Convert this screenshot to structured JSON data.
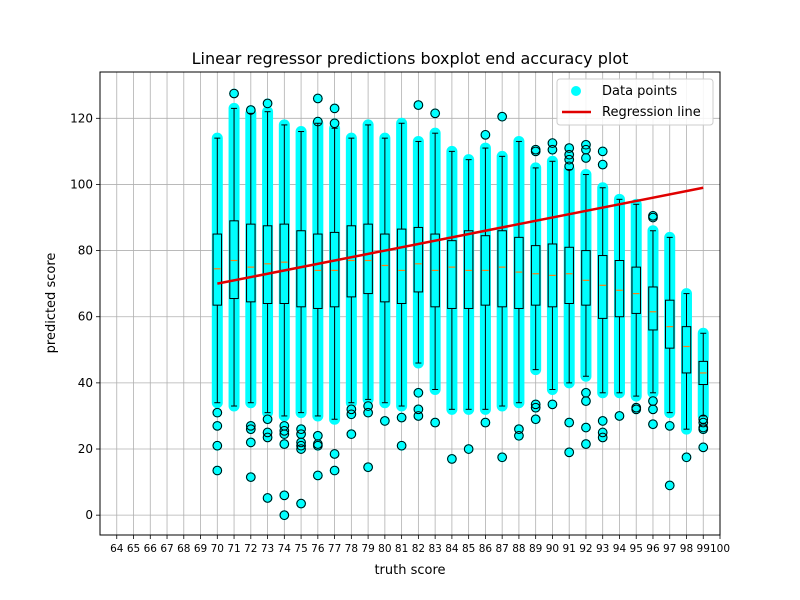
{
  "chart_data": {
    "type": "boxplot",
    "title": "Linear regressor predictions boxplot end accuracy plot",
    "xlabel": "truth score",
    "ylabel": "predicted score",
    "x_ticks": [
      64,
      65,
      66,
      67,
      68,
      69,
      70,
      71,
      72,
      73,
      74,
      75,
      76,
      77,
      78,
      79,
      80,
      81,
      82,
      83,
      84,
      85,
      86,
      87,
      88,
      89,
      90,
      91,
      92,
      93,
      94,
      95,
      96,
      97,
      98,
      99,
      100
    ],
    "xlim": [
      63,
      100
    ],
    "ylim": [
      -6,
      134
    ],
    "y_ticks": [
      0,
      20,
      40,
      60,
      80,
      100,
      120
    ],
    "grid": true,
    "legend": {
      "placement": "top-right",
      "entries": [
        {
          "label": "Data points",
          "color": "#00ffff",
          "marker": "circle"
        },
        {
          "label": "Regression line",
          "color": "#e00000",
          "marker": "line"
        }
      ]
    },
    "colors": {
      "points": "#00ffff",
      "regression": "#e00000",
      "median": "#ff7f0e",
      "box": "#000000",
      "grid": "#b0b0b0"
    },
    "regression_line": {
      "x": [
        70,
        99
      ],
      "y": [
        70,
        99
      ]
    },
    "boxes": [
      {
        "x": 70,
        "whislo": 34,
        "q1": 63.5,
        "med": 74.5,
        "q3": 85,
        "whishi": 114,
        "outliers": [
          31,
          27,
          21,
          13.5
        ]
      },
      {
        "x": 71,
        "whislo": 33,
        "q1": 65.5,
        "med": 77,
        "q3": 89,
        "whishi": 123,
        "outliers": [
          127.5
        ]
      },
      {
        "x": 72,
        "whislo": 34,
        "q1": 64.5,
        "med": 75,
        "q3": 88,
        "whishi": 121.5,
        "outliers": [
          122.5,
          27,
          26,
          22,
          11.5
        ]
      },
      {
        "x": 73,
        "whislo": 31,
        "q1": 64,
        "med": 76,
        "q3": 87.5,
        "whishi": 122,
        "outliers": [
          124.5,
          29,
          25,
          23.5,
          5.2
        ]
      },
      {
        "x": 74,
        "whislo": 30,
        "q1": 64,
        "med": 76.5,
        "q3": 88,
        "whishi": 118,
        "outliers": [
          27,
          25.5,
          24.5,
          21.5,
          6,
          0
        ]
      },
      {
        "x": 75,
        "whislo": 31,
        "q1": 63,
        "med": 75,
        "q3": 86,
        "whishi": 116,
        "outliers": [
          26,
          24.5,
          22,
          21,
          20,
          3.5
        ]
      },
      {
        "x": 76,
        "whislo": 30,
        "q1": 62.5,
        "med": 74,
        "q3": 85,
        "whishi": 118.5,
        "outliers": [
          126,
          119,
          24,
          21.5,
          21,
          12
        ]
      },
      {
        "x": 77,
        "whislo": 29,
        "q1": 63,
        "med": 74,
        "q3": 85.5,
        "whishi": 117,
        "outliers": [
          123,
          118.5,
          18.5,
          13.5
        ]
      },
      {
        "x": 78,
        "whislo": 34,
        "q1": 66,
        "med": 77,
        "q3": 87.5,
        "whishi": 114,
        "outliers": [
          32,
          30.5,
          24.5
        ]
      },
      {
        "x": 79,
        "whislo": 35,
        "q1": 67,
        "med": 77,
        "q3": 88,
        "whishi": 118,
        "outliers": [
          33,
          31,
          14.5
        ]
      },
      {
        "x": 80,
        "whislo": 34,
        "q1": 64.5,
        "med": 75.5,
        "q3": 85,
        "whishi": 114,
        "outliers": [
          28.5
        ]
      },
      {
        "x": 81,
        "whislo": 33,
        "q1": 64,
        "med": 74,
        "q3": 86.5,
        "whishi": 118.5,
        "outliers": [
          29.5,
          21
        ]
      },
      {
        "x": 82,
        "whislo": 46,
        "q1": 67.5,
        "med": 76,
        "q3": 87,
        "whishi": 113,
        "outliers": [
          124,
          37,
          32,
          30
        ]
      },
      {
        "x": 83,
        "whislo": 38,
        "q1": 63,
        "med": 74,
        "q3": 85,
        "whishi": 115.5,
        "outliers": [
          121.5,
          28
        ]
      },
      {
        "x": 84,
        "whislo": 32,
        "q1": 62.5,
        "med": 75,
        "q3": 83,
        "whishi": 110,
        "outliers": [
          17
        ]
      },
      {
        "x": 85,
        "whislo": 32,
        "q1": 62.5,
        "med": 74,
        "q3": 86,
        "whishi": 107.5,
        "outliers": [
          20
        ]
      },
      {
        "x": 86,
        "whislo": 32,
        "q1": 63.5,
        "med": 74,
        "q3": 84.5,
        "whishi": 111,
        "outliers": [
          115,
          28
        ]
      },
      {
        "x": 87,
        "whislo": 33,
        "q1": 63,
        "med": 75,
        "q3": 86,
        "whishi": 108.5,
        "outliers": [
          120.5,
          17.5
        ]
      },
      {
        "x": 88,
        "whislo": 34,
        "q1": 62.5,
        "med": 73.5,
        "q3": 84,
        "whishi": 113,
        "outliers": [
          26,
          24
        ]
      },
      {
        "x": 89,
        "whislo": 44,
        "q1": 63.5,
        "med": 73,
        "q3": 81.5,
        "whishi": 105,
        "outliers": [
          110.5,
          110,
          33.5,
          32.5,
          29
        ]
      },
      {
        "x": 90,
        "whislo": 38,
        "q1": 63,
        "med": 72.5,
        "q3": 82,
        "whishi": 107,
        "outliers": [
          112.5,
          110.5,
          33.5
        ]
      },
      {
        "x": 91,
        "whislo": 40,
        "q1": 64,
        "med": 73,
        "q3": 81,
        "whishi": 104.5,
        "outliers": [
          111,
          109,
          107.5,
          105.5,
          28,
          19
        ]
      },
      {
        "x": 92,
        "whislo": 42,
        "q1": 63.5,
        "med": 71,
        "q3": 80,
        "whishi": 103,
        "outliers": [
          112,
          110.5,
          108,
          37,
          34.5,
          26.5,
          21.5
        ]
      },
      {
        "x": 93,
        "whislo": 37,
        "q1": 59.5,
        "med": 69.5,
        "q3": 78.5,
        "whishi": 99,
        "outliers": [
          110,
          106,
          28.5,
          25,
          23.5
        ]
      },
      {
        "x": 94,
        "whislo": 37,
        "q1": 60,
        "med": 68,
        "q3": 77,
        "whishi": 95.5,
        "outliers": [
          30
        ]
      },
      {
        "x": 95,
        "whislo": 36,
        "q1": 61,
        "med": 67,
        "q3": 75,
        "whishi": 94,
        "outliers": [
          32.5,
          32
        ]
      },
      {
        "x": 96,
        "whislo": 37,
        "q1": 56,
        "med": 61.5,
        "q3": 69,
        "whishi": 86,
        "outliers": [
          90.5,
          90,
          34.5,
          32,
          27.5
        ]
      },
      {
        "x": 97,
        "whislo": 31,
        "q1": 50.5,
        "med": 57,
        "q3": 65,
        "whishi": 84,
        "outliers": [
          27,
          9
        ]
      },
      {
        "x": 98,
        "whislo": 26,
        "q1": 43,
        "med": 51,
        "q3": 57,
        "whishi": 67,
        "outliers": [
          17.5
        ]
      },
      {
        "x": 99,
        "whislo": 30,
        "q1": 39.5,
        "med": 43,
        "q3": 46.5,
        "whishi": 55,
        "outliers": [
          29,
          28,
          26.5,
          26,
          20.5
        ]
      }
    ]
  }
}
